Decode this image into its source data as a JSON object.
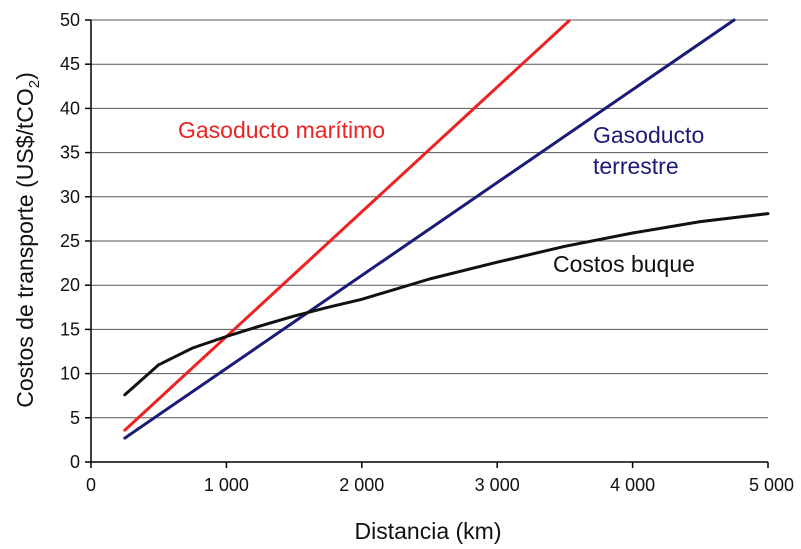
{
  "chart_data": {
    "type": "line",
    "xlabel": "Distancia (km)",
    "ylabel": "Costos de transporte (US$/tCO",
    "ylabel_subscript": "2",
    "ylabel_suffix": ")",
    "xlim": [
      0,
      5000
    ],
    "ylim": [
      0,
      50
    ],
    "xticks": [
      0,
      1000,
      2000,
      3000,
      4000,
      5000
    ],
    "xtick_labels": [
      "0",
      "1 000",
      "2 000",
      "3 000",
      "4 000",
      "5 000"
    ],
    "yticks": [
      0,
      5,
      10,
      15,
      20,
      25,
      30,
      35,
      40,
      45,
      50
    ],
    "ytick_labels": [
      "0",
      "5",
      "10",
      "15",
      "20",
      "25",
      "30",
      "35",
      "40",
      "45",
      "50"
    ],
    "grid": "horizontal",
    "series": [
      {
        "name": "Gasoducto marítimo",
        "color": "#ee2222",
        "x": [
          250,
          3530
        ],
        "y": [
          3.6,
          49.9
        ]
      },
      {
        "name_lines": [
          "Gasoducto",
          "terrestre"
        ],
        "color": "#1a1a78",
        "x": [
          250,
          4750
        ],
        "y": [
          2.7,
          50.0
        ]
      },
      {
        "name": "Costos buque",
        "color": "#111111",
        "x": [
          250,
          500,
          750,
          1000,
          1250,
          1500,
          1750,
          2000,
          2500,
          3000,
          3500,
          4000,
          4500,
          5000
        ],
        "y": [
          7.6,
          11.0,
          12.9,
          14.2,
          15.4,
          16.5,
          17.5,
          18.4,
          20.7,
          22.6,
          24.4,
          25.9,
          27.2,
          28.1
        ]
      }
    ]
  }
}
